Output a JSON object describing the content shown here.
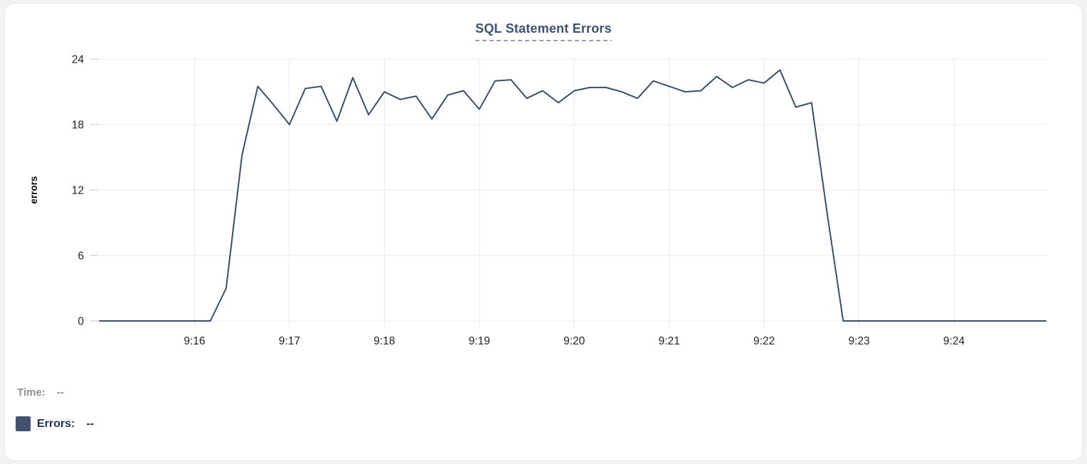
{
  "chart_data": {
    "type": "line",
    "title": "SQL Statement Errors",
    "xlabel": "",
    "ylabel": "errors",
    "ylim": [
      0,
      24
    ],
    "y_ticks": [
      0,
      6,
      12,
      18,
      24
    ],
    "x_axis_start_time": "9:15",
    "x_domain_seconds": [
      0,
      598
    ],
    "x_tick_seconds": [
      60,
      120,
      180,
      240,
      300,
      360,
      420,
      480,
      540
    ],
    "x_tick_labels": [
      "9:16",
      "9:17",
      "9:18",
      "9:19",
      "9:20",
      "9:21",
      "9:22",
      "9:23",
      "9:24"
    ],
    "grid": true,
    "legend_position": "bottom-left",
    "series": [
      {
        "name": "Errors",
        "color": "#3c4e6e",
        "x_seconds": [
          0,
          10,
          20,
          30,
          40,
          50,
          60,
          70,
          80,
          90,
          100,
          110,
          120,
          130,
          140,
          150,
          160,
          170,
          180,
          190,
          200,
          210,
          220,
          230,
          240,
          250,
          260,
          270,
          280,
          290,
          300,
          310,
          320,
          330,
          340,
          350,
          360,
          370,
          380,
          390,
          400,
          410,
          420,
          430,
          440,
          450,
          460,
          470,
          480,
          490,
          500,
          510,
          520,
          530,
          540,
          550,
          560,
          570,
          580,
          590,
          598
        ],
        "values": [
          0,
          0,
          0,
          0,
          0,
          0,
          0,
          0,
          3,
          15.2,
          21.5,
          19.8,
          18,
          21.3,
          21.5,
          18.3,
          22.3,
          18.9,
          21,
          20.3,
          20.6,
          18.5,
          20.7,
          21.1,
          19.4,
          22,
          22.1,
          20.4,
          21.1,
          20,
          21.1,
          21.4,
          21.4,
          21,
          20.4,
          22,
          21.5,
          21,
          21.1,
          22.4,
          21.4,
          22.1,
          21.8,
          23,
          19.6,
          20,
          9.7,
          0,
          0,
          0,
          0,
          0,
          0,
          0,
          0,
          0,
          0,
          0,
          0,
          0,
          0
        ]
      }
    ]
  },
  "readout": {
    "time_label": "Time:",
    "time_value": "--",
    "errors_label": "Errors:",
    "errors_value": "--"
  },
  "colors": {
    "page_background": "#f3f3f4",
    "card_background": "#ffffff",
    "card_border": "#e3e4e6",
    "title_text": "#3b5173",
    "title_underline": "#93a3bb",
    "grid_line": "#e9eaec",
    "tick_mark": "#e0e2e5",
    "tick_label": "#1f2124",
    "axis_name": "#0a0a0a",
    "series_line": "#3c4e6e",
    "legend_swatch": "#41526e",
    "time_readout": "#8e9196",
    "errors_readout": "#1d2f55"
  }
}
